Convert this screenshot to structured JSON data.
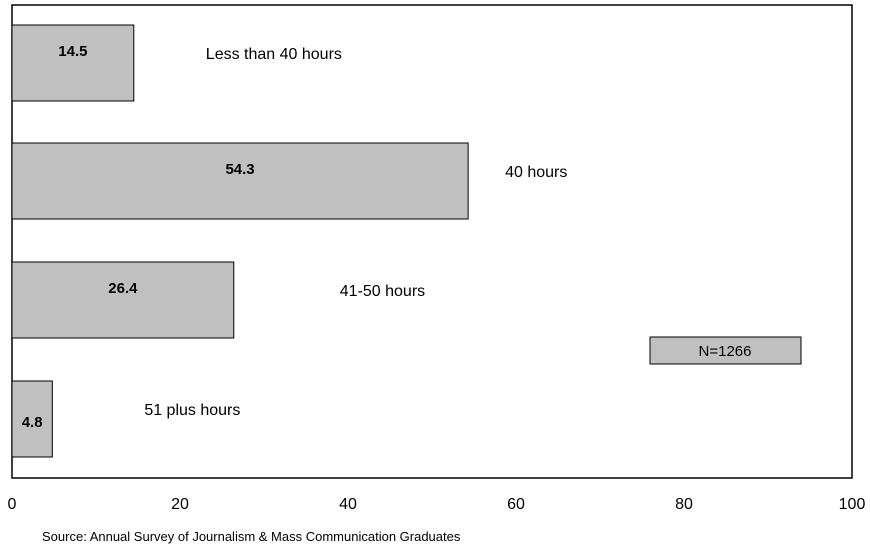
{
  "chart_data": {
    "type": "bar",
    "orientation": "horizontal",
    "categories": [
      "Less than 40 hours",
      "40 hours",
      "41-50 hours",
      "51 plus hours"
    ],
    "values": [
      14.5,
      54.3,
      26.4,
      4.8
    ],
    "value_labels": [
      "14.5",
      "54.3",
      "26.4",
      "4.8"
    ],
    "xlim": [
      0,
      100
    ],
    "xticks": [
      "0",
      "20",
      "40",
      "60",
      "80",
      "100"
    ],
    "grid": false,
    "bar_color": "#c0c0c0",
    "annotation": "N=1266",
    "source": "Source:  Annual Survey of Journalism & Mass Communication Graduates"
  }
}
